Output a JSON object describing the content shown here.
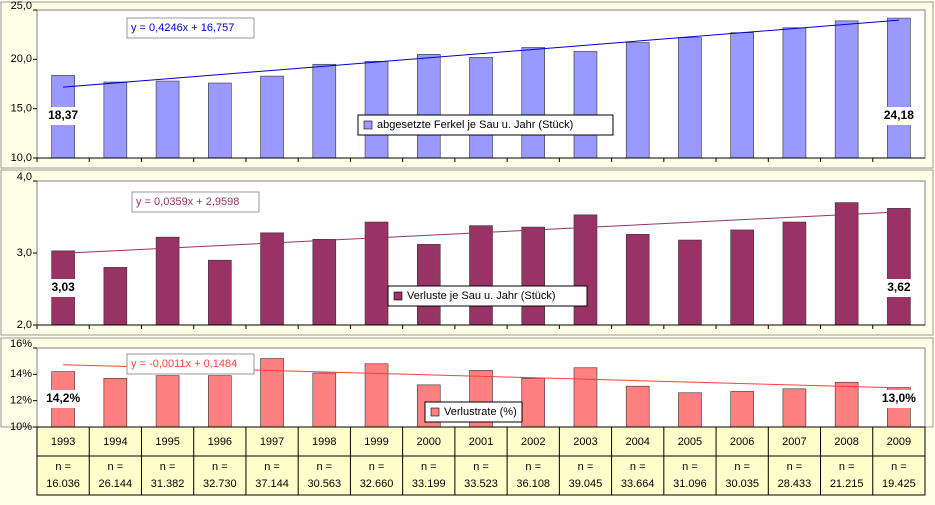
{
  "chart_data": [
    {
      "type": "bar",
      "color": "#9999ff",
      "values": [
        18.37,
        17.7,
        17.8,
        17.6,
        18.3,
        19.5,
        19.8,
        20.5,
        20.2,
        21.2,
        20.8,
        21.7,
        22.2,
        22.7,
        23.2,
        23.9,
        24.18
      ],
      "value_labels": [
        "18,37",
        null,
        null,
        null,
        null,
        null,
        null,
        null,
        null,
        null,
        null,
        null,
        null,
        null,
        null,
        null,
        "24,18"
      ],
      "legend": "abgesetzte Ferkel je Sau u. Jahr (Stück)",
      "trendline": {
        "label": "y = 0,4246x + 16,757",
        "slope": 0.4246,
        "intercept": 16.757,
        "color": "#0000cc"
      },
      "ylim": [
        10,
        25
      ],
      "yticks": [
        {
          "value": 10,
          "label": "10,0"
        },
        {
          "value": 15,
          "label": "15,0"
        },
        {
          "value": 20,
          "label": "20,0"
        },
        {
          "value": 25,
          "label": "25,0"
        }
      ]
    },
    {
      "type": "bar",
      "color": "#993366",
      "values": [
        3.03,
        2.8,
        3.22,
        2.9,
        3.28,
        3.19,
        3.43,
        3.12,
        3.38,
        3.36,
        3.53,
        3.26,
        3.18,
        3.32,
        3.43,
        3.7,
        3.62
      ],
      "value_labels": [
        "3,03",
        null,
        null,
        null,
        null,
        null,
        null,
        null,
        null,
        null,
        null,
        null,
        null,
        null,
        null,
        null,
        "3,62"
      ],
      "legend": "Verluste je Sau u. Jahr (Stück)",
      "trendline": {
        "label": "y = 0,0359x + 2,9598",
        "slope": 0.0359,
        "intercept": 2.9598,
        "color": "#993366"
      },
      "ylim": [
        2,
        4
      ],
      "yticks": [
        {
          "value": 2,
          "label": "2,0"
        },
        {
          "value": 3,
          "label": "3,0"
        },
        {
          "value": 4,
          "label": "4,0"
        }
      ]
    },
    {
      "type": "bar",
      "color": "#ff8080",
      "categories": [
        "1993",
        "1994",
        "1995",
        "1996",
        "1997",
        "1998",
        "1999",
        "2000",
        "2001",
        "2002",
        "2003",
        "2004",
        "2005",
        "2006",
        "2007",
        "2008",
        "2009"
      ],
      "n_label": "n =",
      "sample_sizes": [
        "16.036",
        "26.144",
        "31.382",
        "32.730",
        "37.144",
        "30.563",
        "32.660",
        "33.199",
        "33.523",
        "36.108",
        "39.045",
        "33.664",
        "31.096",
        "30.035",
        "28.433",
        "21.215",
        "19.425"
      ],
      "values": [
        0.142,
        0.137,
        0.139,
        0.139,
        0.152,
        0.141,
        0.148,
        0.132,
        0.143,
        0.137,
        0.145,
        0.131,
        0.126,
        0.127,
        0.129,
        0.134,
        0.13
      ],
      "value_labels": [
        "14,2%",
        null,
        null,
        null,
        null,
        null,
        null,
        null,
        null,
        null,
        null,
        null,
        null,
        null,
        null,
        null,
        "13,0%"
      ],
      "legend": "Verlustrate (%)",
      "trendline": {
        "label": "y = -0,0011x + 0,1484",
        "slope": -0.0011,
        "intercept": 0.1484,
        "color": "#ff4040"
      },
      "ylim": [
        0.1,
        0.16
      ],
      "yticks": [
        {
          "value": 0.1,
          "label": "10%"
        },
        {
          "value": 0.12,
          "label": "12%"
        },
        {
          "value": 0.14,
          "label": "14%"
        },
        {
          "value": 0.16,
          "label": "16%"
        }
      ]
    }
  ]
}
